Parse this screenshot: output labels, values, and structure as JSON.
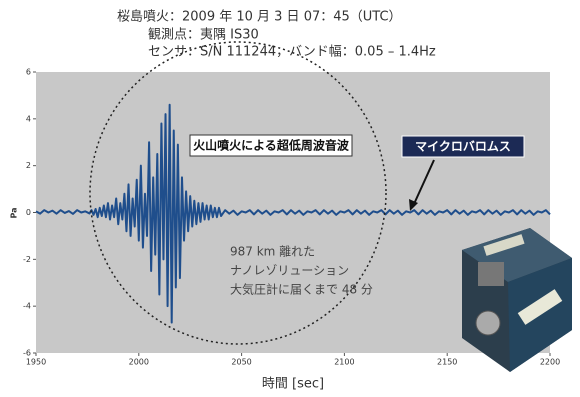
{
  "chart_data": {
    "type": "line",
    "header": [
      "桜島噴火：2009 年 10 月 3 日 07：45（UTC）",
      "観測点：夷隅 IS30",
      "センサ：S/N 111244，バンド幅：0.05 – 1.4Hz"
    ],
    "xlabel": "時間 [sec]",
    "ylabel": "Pa",
    "xlim": [
      1950,
      2200
    ],
    "xticks": [
      1950,
      2000,
      2050,
      2100,
      2150,
      2200
    ],
    "ylim": [
      -6,
      6
    ],
    "yticks": [
      -6,
      -4,
      -2,
      0,
      2,
      4,
      6
    ],
    "annotations": [
      "火山噴火による超低周波音波",
      "マイクロバロムス",
      "987 km 離れた",
      "ナノレゾリューション",
      "大気圧計に届くまで 48 分"
    ],
    "x": [
      1950,
      1952,
      1954,
      1956,
      1958,
      1960,
      1962,
      1964,
      1966,
      1968,
      1970,
      1972,
      1974,
      1976,
      1977,
      1978,
      1979,
      1980,
      1981,
      1982,
      1983,
      1984,
      1985,
      1986,
      1987,
      1988,
      1989,
      1990,
      1991,
      1992,
      1993,
      1994,
      1995,
      1996,
      1997,
      1998,
      1999,
      2000,
      2001,
      2002,
      2003,
      2004,
      2005,
      2006,
      2007,
      2008,
      2009,
      2010,
      2011,
      2012,
      2013,
      2014,
      2015,
      2016,
      2017,
      2018,
      2019,
      2020,
      2021,
      2022,
      2023,
      2024,
      2025,
      2026,
      2027,
      2028,
      2029,
      2030,
      2031,
      2032,
      2033,
      2034,
      2035,
      2036,
      2037,
      2038,
      2039,
      2040,
      2042,
      2044,
      2046,
      2048,
      2050,
      2052,
      2054,
      2056,
      2058,
      2060,
      2062,
      2064,
      2066,
      2068,
      2070,
      2072,
      2074,
      2076,
      2078,
      2080,
      2082,
      2084,
      2086,
      2088,
      2090,
      2092,
      2094,
      2096,
      2098,
      2100,
      2102,
      2104,
      2106,
      2108,
      2110,
      2112,
      2114,
      2116,
      2118,
      2120,
      2122,
      2124,
      2126,
      2128,
      2130,
      2132,
      2134,
      2136,
      2138,
      2140,
      2142,
      2144,
      2146,
      2148,
      2150,
      2152,
      2154,
      2156,
      2158,
      2160,
      2162,
      2164,
      2166,
      2168,
      2170,
      2172,
      2174,
      2176,
      2178,
      2180,
      2182,
      2184,
      2186,
      2188,
      2190,
      2192,
      2194,
      2196,
      2198,
      2200
    ],
    "series": [
      {
        "color": "#1f4e8c",
        "values": [
          0.05,
          -0.05,
          0.1,
          0,
          0.08,
          -0.05,
          0.1,
          -0.02,
          0.06,
          -0.06,
          0.1,
          0,
          0.05,
          -0.04,
          0.1,
          -0.1,
          0.15,
          -0.2,
          0.2,
          -0.15,
          0.3,
          -0.2,
          0.4,
          -0.3,
          0.3,
          -0.2,
          0.6,
          -0.5,
          0.4,
          -0.3,
          0.8,
          -0.8,
          1.2,
          -1.0,
          0.6,
          -0.6,
          1.4,
          -1.2,
          2.0,
          -1.5,
          0.8,
          -1.0,
          3.0,
          -2.5,
          1.5,
          -1.8,
          2.5,
          -3.5,
          3.8,
          -2.0,
          4.2,
          -4.0,
          4.6,
          -4.7,
          3.5,
          -3.2,
          2.9,
          -2.8,
          1.5,
          -1.2,
          0.9,
          -0.8,
          0.7,
          -0.6,
          0.5,
          -0.5,
          0.4,
          -0.4,
          0.4,
          -0.3,
          0.3,
          -0.3,
          0.3,
          -0.2,
          0.2,
          -0.2,
          0.2,
          -0.15,
          0.1,
          -0.05,
          0.08,
          -0.1,
          0.05,
          0,
          0.1,
          -0.08,
          0.1,
          -0.05,
          0.08,
          -0.1,
          0.05,
          0,
          0.1,
          -0.08,
          0.1,
          -0.05,
          0.08,
          -0.1,
          0.05,
          0,
          0.1,
          -0.08,
          0.1,
          -0.05,
          0.08,
          -0.1,
          0.05,
          0,
          0.1,
          -0.08,
          0.1,
          -0.05,
          0.08,
          -0.1,
          0.05,
          0,
          0.1,
          -0.08,
          0.1,
          -0.05,
          0.08,
          -0.1,
          0.05,
          0,
          0.1,
          -0.08,
          0.1,
          -0.05,
          0.08,
          -0.1,
          0.05,
          0,
          0.1,
          -0.08,
          0.1,
          -0.05,
          0.08,
          -0.1,
          0.05,
          0,
          0.1,
          -0.08,
          0.1,
          -0.05,
          0.08,
          -0.1,
          0.05,
          0,
          0.1,
          -0.08,
          0.1,
          -0.05,
          0.08,
          -0.1,
          0.05,
          0,
          0.1,
          -0.08
        ]
      }
    ],
    "background": "#c8c8c8",
    "grid": false
  }
}
